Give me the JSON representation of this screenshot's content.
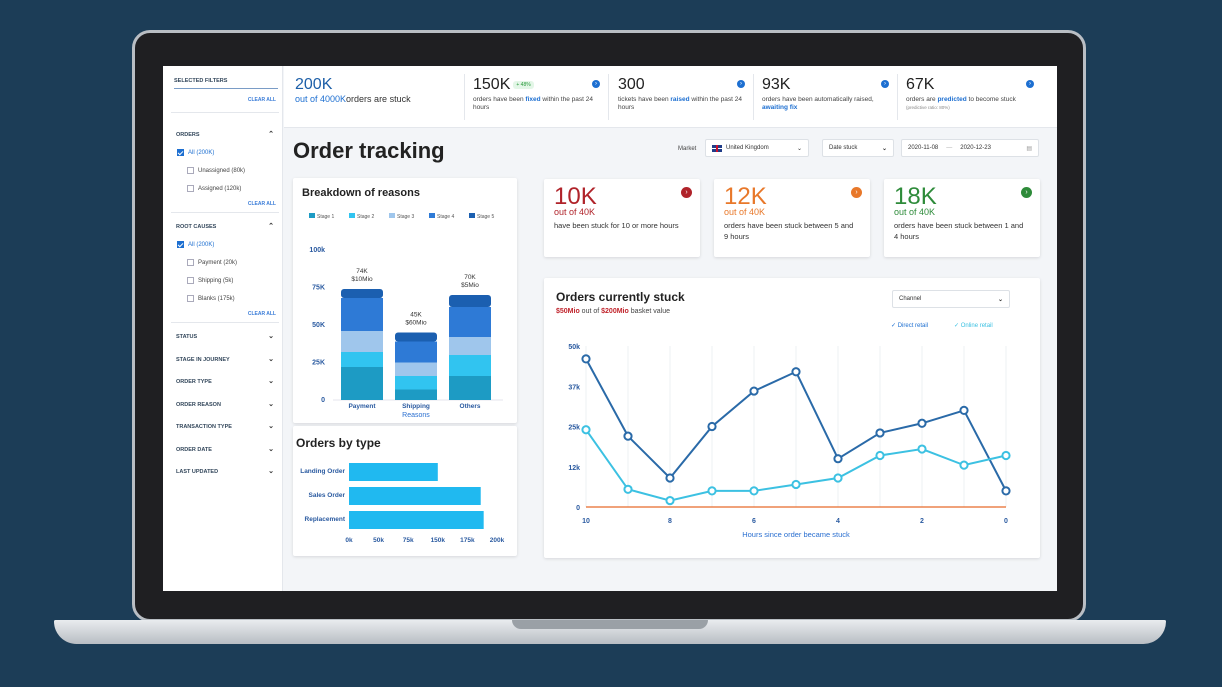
{
  "sidebar": {
    "title": "SELECTED FILTERS",
    "clear_all": "CLEAR ALL",
    "orders": {
      "label": "ORDERS",
      "options": [
        "All (200K)",
        "Unassigned (80k)",
        "Assigned (120k)"
      ],
      "clear": "CLEAR ALL"
    },
    "root_causes": {
      "label": "ROOT CAUSES",
      "options": [
        "All (200K)",
        "Payment (20k)",
        "Shipping (5k)",
        "Blanks (175k)"
      ],
      "clear": "CLEAR ALL"
    },
    "collapsed": [
      "STATUS",
      "STAGE IN JOURNEY",
      "ORDER TYPE",
      "ORDER REASON",
      "TRANSACTION TYPE",
      "ORDER DATE",
      "LAST UPDATED"
    ]
  },
  "kpis": {
    "k1": {
      "value": "200K",
      "of": "out of 4000K",
      "text": "orders are stuck"
    },
    "k2": {
      "value": "150K",
      "badge": "+ 48%",
      "t1": "orders have been ",
      "link": "fixed",
      "t2": " within the past 24 hours"
    },
    "k3": {
      "value": "300",
      "t1": "tickets have been ",
      "link": "raised",
      "t2": " within the past 24 hours"
    },
    "k4": {
      "value": "93K",
      "t1": "orders have been automatically raised, ",
      "link": "awaiting fix"
    },
    "k5": {
      "value": "67K",
      "t1": "orders are ",
      "link": "predicted",
      "t2": " to become stuck",
      "note": "(predictive ratio: 80%)"
    }
  },
  "page_title": "Order tracking",
  "controls": {
    "market_label": "Market",
    "market_value": "United Kingdom",
    "date_select": "Date stuck",
    "date_from": "2020-11-08",
    "date_sep": "—",
    "date_to": "2020-12-23"
  },
  "stats": [
    {
      "value": "10K",
      "of": "out of 40K",
      "desc": "have been stuck for 10 or more hours",
      "color": "#b0232a"
    },
    {
      "value": "12K",
      "of": "out of 40K",
      "desc": "orders have been stuck between 5 and 9 hours",
      "color": "#e8782a"
    },
    {
      "value": "18K",
      "of": "out of 40K",
      "desc": "orders have been stuck between 1 and 4 hours",
      "color": "#2e8b3a"
    }
  ],
  "breakdown": {
    "title": "Breakdown of reasons",
    "legend": [
      "Stage 1",
      "Stage 2",
      "Stage 3",
      "Stage 4",
      "Stage 5"
    ],
    "stage_colors": [
      "#1d9bc4",
      "#31c4f0",
      "#9fc6ec",
      "#2e7ad6",
      "#1b5fb0"
    ],
    "xlabel": "Reasons",
    "chart_data": {
      "type": "bar",
      "stacked": true,
      "categories": [
        "Payment",
        "Shipping",
        "Others"
      ],
      "series": [
        {
          "name": "Stage 1",
          "values": [
            22,
            7,
            16
          ]
        },
        {
          "name": "Stage 2",
          "values": [
            10,
            9,
            14
          ]
        },
        {
          "name": "Stage 3",
          "values": [
            14,
            9,
            12
          ]
        },
        {
          "name": "Stage 4",
          "values": [
            22,
            14,
            20
          ]
        },
        {
          "name": "Stage 5",
          "values": [
            6,
            6,
            8
          ]
        }
      ],
      "data_labels": [
        [
          "74K",
          "$10Mio"
        ],
        [
          "45K",
          "$60Mio"
        ],
        [
          "70K",
          "$5Mio"
        ]
      ],
      "yticks": [
        "100k",
        "75K",
        "50K",
        "25K",
        "0"
      ],
      "ylim": [
        0,
        100
      ],
      "xlabel": "Reasons"
    }
  },
  "orders_by_type": {
    "title": "Orders by type",
    "chart_data": {
      "type": "bar",
      "orientation": "horizontal",
      "categories": [
        "Landing Order",
        "Sales Order",
        "Replacement"
      ],
      "values": [
        120,
        178,
        182
      ],
      "xticks": [
        "0k",
        "50k",
        "75k",
        "150k",
        "175k",
        "200k"
      ],
      "xlim": [
        0,
        200
      ]
    },
    "color": "#20b9f0"
  },
  "stuck": {
    "title": "Orders currently stuck",
    "subtitle_a": "$50Mio",
    "subtitle_b": " out of ",
    "subtitle_c": "$200Mio",
    "subtitle_d": " basket value",
    "select": "Channel",
    "legend": [
      "Direct retail",
      "Online retail"
    ],
    "colors": [
      "#2a6aa8",
      "#3cc1e2"
    ],
    "xlabel": "Hours since order became stuck",
    "chart_data": {
      "type": "line",
      "x": [
        10,
        9,
        8,
        7,
        6,
        5,
        4,
        3,
        2,
        1,
        0
      ],
      "xticks": [
        "10",
        "8",
        "6",
        "4",
        "2",
        "0"
      ],
      "yticks": [
        "50k",
        "37k",
        "25k",
        "12k",
        "0"
      ],
      "ylim": [
        0,
        50
      ],
      "series": [
        {
          "name": "Direct retail",
          "values": [
            46,
            22,
            9,
            25,
            36,
            42,
            15,
            23,
            26,
            30,
            5
          ]
        },
        {
          "name": "Online retail",
          "values": [
            24,
            5.5,
            2,
            5,
            5,
            7,
            9,
            16,
            18,
            13,
            16
          ]
        }
      ]
    }
  }
}
